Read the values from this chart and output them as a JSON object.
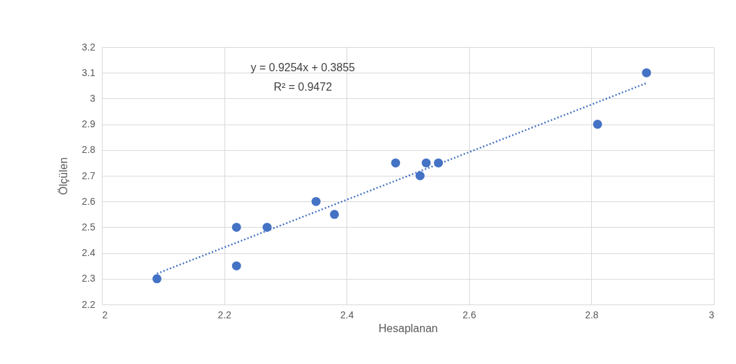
{
  "chart_data": {
    "type": "scatter",
    "xlabel": "Hesaplanan",
    "ylabel": "Ölçülen",
    "marker": "circle",
    "x": [
      2.09,
      2.22,
      2.22,
      2.27,
      2.35,
      2.38,
      2.48,
      2.52,
      2.53,
      2.55,
      2.81,
      2.89
    ],
    "series": [
      {
        "color": "#4472c4",
        "values": [
          2.3,
          2.5,
          2.35,
          2.5,
          2.6,
          2.55,
          2.75,
          2.7,
          2.75,
          2.75,
          2.9,
          3.1
        ]
      },
      {
        "type": "line",
        "x": [
          2.09,
          2.89
        ],
        "values": [
          2.32,
          3.06
        ],
        "color": "#4472c4",
        "line_style": "dotted",
        "marker": "none"
      }
    ],
    "annotations": [
      "y = 0.9254x + 0.3855",
      "R² = 0.9472"
    ],
    "xlim": [
      2,
      3
    ],
    "xticks": [
      2,
      2.2,
      2.4,
      2.6,
      2.8,
      3
    ],
    "ylim": [
      2.2,
      3.2
    ],
    "yticks": [
      2.2,
      2.3,
      2.4,
      2.5,
      2.6,
      2.7,
      2.8,
      2.9,
      3,
      3.1,
      3.2
    ],
    "grid": true
  }
}
